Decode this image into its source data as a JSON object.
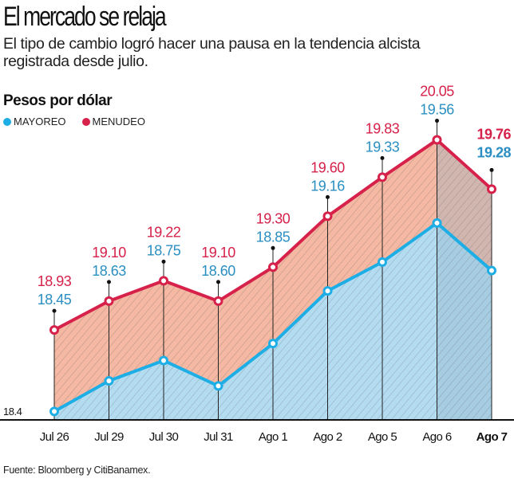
{
  "title": "El mercado se relaja",
  "subtitle": "El tipo de cambio logró hacer una pausa en la tendencia alcista registrada desde julio.",
  "source": "Fuente: Bloomberg y CitiBanamex.",
  "colors": {
    "menudeo": "#d6214a",
    "mayoreo": "#1eaee6",
    "mayoreo_label": "#2b8fc2",
    "menudeo_fill": "#f4b8a3",
    "mayoreo_fill": "#b4dcf1",
    "highlight_fill": "#8fb3c7"
  },
  "chart_data": {
    "type": "area",
    "ylabel": "Pesos por dólar",
    "ymin_label": "18.4",
    "ylim": [
      18.4,
      20.3
    ],
    "grid": false,
    "legend": "top-left",
    "categories": [
      "Jul 26",
      "Jul 29",
      "Jul 30",
      "Jul 31",
      "Ago 1",
      "Ago 2",
      "Ago 5",
      "Ago 6",
      "Ago 7"
    ],
    "highlight_category": "Ago 7",
    "series": [
      {
        "name": "MENUDEO",
        "values": [
          18.93,
          19.1,
          19.22,
          19.1,
          19.3,
          19.6,
          19.83,
          20.05,
          19.76
        ],
        "labels": [
          "18.93",
          "19.10",
          "19.22",
          "19.10",
          "19.30",
          "19.60",
          "19.83",
          "20.05",
          "19.76"
        ]
      },
      {
        "name": "MAYOREO",
        "values": [
          18.45,
          18.63,
          18.75,
          18.6,
          18.85,
          19.16,
          19.33,
          19.56,
          19.28
        ],
        "labels": [
          "18.45",
          "18.63",
          "18.75",
          "18.60",
          "18.85",
          "19.16",
          "19.33",
          "19.56",
          "19.28"
        ]
      }
    ]
  }
}
